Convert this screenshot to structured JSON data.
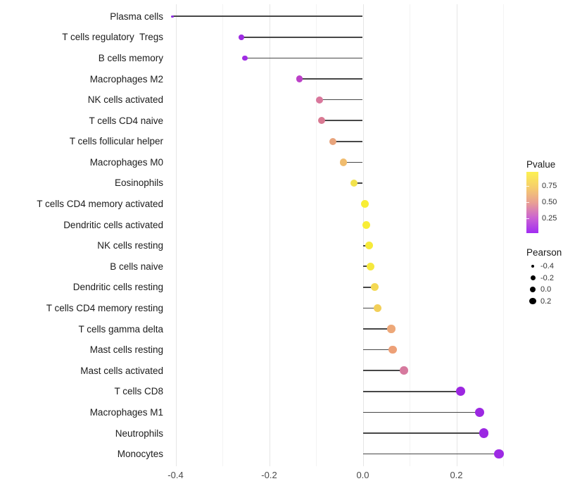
{
  "chart_data": {
    "type": "scatter",
    "subtype": "lollipop",
    "title": "",
    "xlabel": "",
    "ylabel": "",
    "xlim": [
      -0.44,
      0.33
    ],
    "x_ticks": [
      -0.4,
      -0.2,
      0.0,
      0.2
    ],
    "x_tick_labels": [
      "-0.4",
      "-0.2",
      "0.0",
      "0.2"
    ],
    "x_minor_ticks": [
      -0.3,
      -0.1,
      0.1,
      0.3
    ],
    "grid": "vertical-only",
    "stem_origin": 0.0,
    "points": [
      {
        "label": "Plasma cells",
        "pearson": -0.407,
        "pvalue": 0.05,
        "color": "#8f2ce4"
      },
      {
        "label": "T cells regulatory  Tregs",
        "pearson": -0.259,
        "pvalue": 0.07,
        "color": "#9e2ce2"
      },
      {
        "label": "B cells memory",
        "pearson": -0.252,
        "pvalue": 0.08,
        "color": "#a02ce4"
      },
      {
        "label": "Macrophages M2",
        "pearson": -0.135,
        "pvalue": 0.2,
        "color": "#bc40c8"
      },
      {
        "label": "NK cells activated",
        "pearson": -0.093,
        "pvalue": 0.42,
        "color": "#d9779c"
      },
      {
        "label": "T cells CD4 naive",
        "pearson": -0.088,
        "pvalue": 0.44,
        "color": "#d97992"
      },
      {
        "label": "T cells follicular helper",
        "pearson": -0.064,
        "pvalue": 0.57,
        "color": "#e8a47c"
      },
      {
        "label": "Macrophages M0",
        "pearson": -0.041,
        "pvalue": 0.67,
        "color": "#f0bc6e"
      },
      {
        "label": "Eosinophils",
        "pearson": -0.019,
        "pvalue": 0.84,
        "color": "#f2e24c"
      },
      {
        "label": "T cells CD4 memory activated",
        "pearson": 0.004,
        "pvalue": 0.93,
        "color": "#f8ee35"
      },
      {
        "label": "Dendritic cells activated",
        "pearson": 0.008,
        "pvalue": 0.93,
        "color": "#f8ed36"
      },
      {
        "label": "NK cells resting",
        "pearson": 0.014,
        "pvalue": 0.92,
        "color": "#f6ea3a"
      },
      {
        "label": "B cells naive",
        "pearson": 0.017,
        "pvalue": 0.91,
        "color": "#f5e83e"
      },
      {
        "label": "Dendritic cells resting",
        "pearson": 0.025,
        "pvalue": 0.79,
        "color": "#f4d954"
      },
      {
        "label": "T cells CD4 memory resting",
        "pearson": 0.032,
        "pvalue": 0.75,
        "color": "#f2cf58"
      },
      {
        "label": "T cells gamma delta",
        "pearson": 0.061,
        "pvalue": 0.6,
        "color": "#eda879"
      },
      {
        "label": "Mast cells resting",
        "pearson": 0.064,
        "pvalue": 0.62,
        "color": "#eda077"
      },
      {
        "label": "Mast cells activated",
        "pearson": 0.088,
        "pvalue": 0.43,
        "color": "#d6799e"
      },
      {
        "label": "T cells CD8",
        "pearson": 0.209,
        "pvalue": 0.06,
        "color": "#9c27e0"
      },
      {
        "label": "Macrophages M1",
        "pearson": 0.249,
        "pvalue": 0.05,
        "color": "#9c28e2"
      },
      {
        "label": "Neutrophils",
        "pearson": 0.258,
        "pvalue": 0.05,
        "color": "#9c28e2"
      },
      {
        "label": "Monocytes",
        "pearson": 0.291,
        "pvalue": 0.04,
        "color": "#9d2ae4"
      }
    ],
    "legend": {
      "pvalue": {
        "title": "Pvalue",
        "tick_labels": [
          "0.75",
          "0.50",
          "0.25"
        ],
        "gradient_top_to_bottom": [
          "#fcf151",
          "#f6ce6c",
          "#e9a093",
          "#cb63d2",
          "#a12cf2"
        ]
      },
      "pearson": {
        "title": "Pearson",
        "values": [
          -0.4,
          -0.2,
          0.0,
          0.2
        ],
        "labels": [
          "-0.4",
          "-0.2",
          "0.0",
          "0.2"
        ],
        "dot_color": "#000000"
      }
    }
  }
}
